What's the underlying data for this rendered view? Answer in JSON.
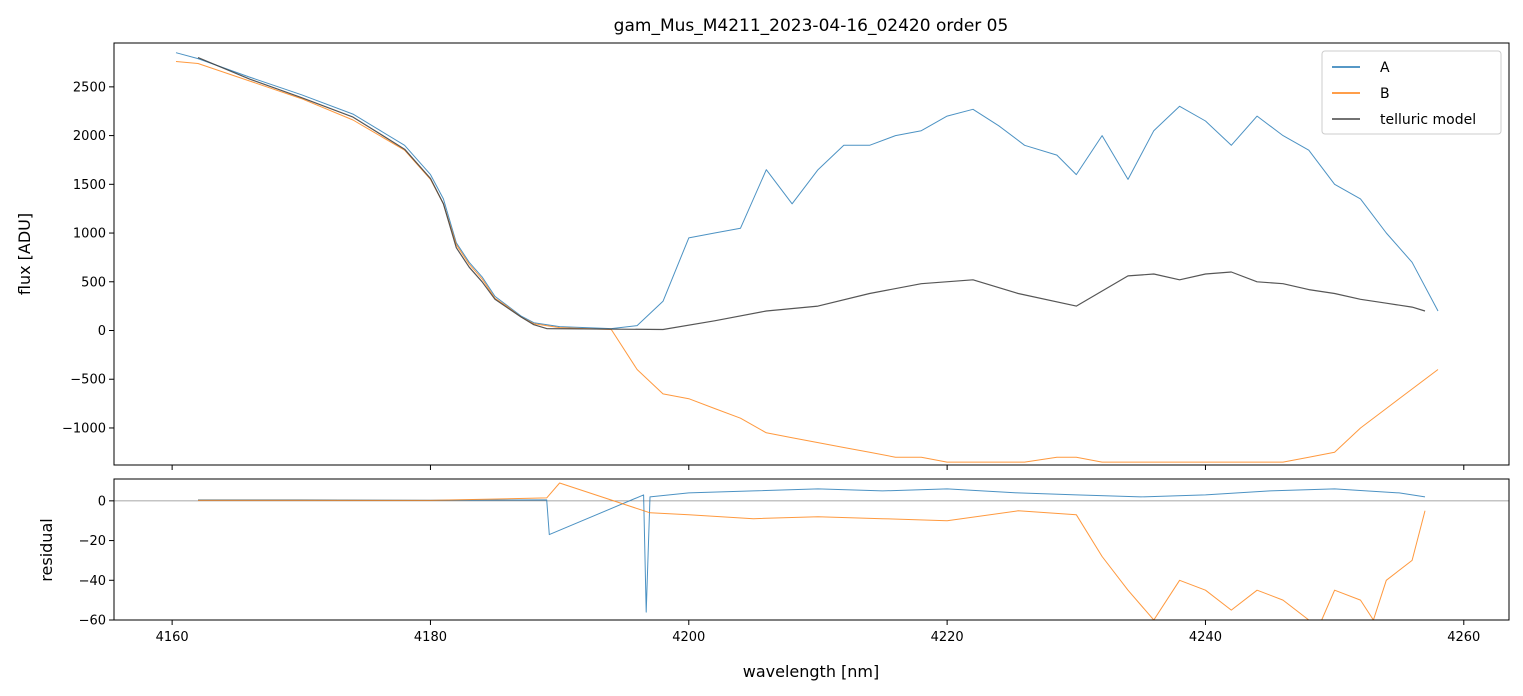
{
  "chart_data": [
    {
      "type": "line",
      "panel": "main",
      "title": "gam_Mus_M4211_2023-04-16_02420  order 05",
      "xlabel": "",
      "ylabel": "flux [ADU]",
      "xlim": [
        4155.5,
        4263.5
      ],
      "ylim": [
        -1380,
        2950
      ],
      "xticks": [
        4160,
        4180,
        4200,
        4220,
        4240,
        4260
      ],
      "xtick_labels_shown": false,
      "yticks": [
        -1000,
        -500,
        0,
        500,
        1000,
        1500,
        2000,
        2500
      ],
      "ytick_labels": [
        "−1000",
        "−500",
        "0",
        "500",
        "1000",
        "1500",
        "2000",
        "2500"
      ],
      "legend": {
        "position": "top-right",
        "entries": [
          "A",
          "B",
          "telluric model"
        ]
      },
      "series": [
        {
          "name": "A",
          "color": "#1f77b4",
          "x": [
            4160.3,
            4162,
            4166,
            4170,
            4174,
            4178,
            4180,
            4181,
            4182,
            4183,
            4184,
            4185,
            4186,
            4187,
            4188,
            4190,
            4192,
            4194,
            4196,
            4198,
            4200,
            4202,
            4204,
            4206,
            4208,
            4210,
            4212,
            4214,
            4216,
            4218,
            4220,
            4222,
            4224,
            4226,
            4228.5,
            4230,
            4232,
            4234,
            4236,
            4238,
            4240,
            4242,
            4244,
            4246,
            4248,
            4250,
            4252,
            4254,
            4256,
            4258
          ],
          "y": [
            2850,
            2790,
            2600,
            2420,
            2220,
            1900,
            1600,
            1350,
            900,
            700,
            550,
            350,
            250,
            150,
            80,
            40,
            30,
            20,
            50,
            300,
            950,
            1000,
            1050,
            1650,
            1300,
            1650,
            1900,
            1900,
            2000,
            2050,
            2200,
            2270,
            2100,
            1900,
            1800,
            1600,
            2000,
            1550,
            2050,
            2300,
            2150,
            1900,
            2200,
            2000,
            1850,
            1500,
            1350,
            1000,
            700,
            200
          ]
        },
        {
          "name": "B",
          "color": "#ff7f0e",
          "x": [
            4160.3,
            4162,
            4166,
            4170,
            4174,
            4178,
            4180,
            4181,
            4182,
            4183,
            4184,
            4185,
            4186,
            4187,
            4188,
            4190,
            4192,
            4194,
            4196,
            4198,
            4200,
            4202,
            4204,
            4206,
            4208,
            4210,
            4212,
            4214,
            4216,
            4218,
            4220,
            4222,
            4224,
            4226,
            4228.5,
            4230,
            4232,
            4234,
            4236,
            4238,
            4240,
            4242,
            4244,
            4246,
            4248,
            4250,
            4252,
            4254,
            4256,
            4258
          ],
          "y": [
            2760,
            2740,
            2560,
            2380,
            2160,
            1850,
            1550,
            1300,
            880,
            680,
            530,
            330,
            240,
            140,
            70,
            30,
            20,
            10,
            -400,
            -650,
            -700,
            -800,
            -900,
            -1050,
            -1100,
            -1150,
            -1200,
            -1250,
            -1300,
            -1300,
            -1350,
            -1350,
            -1350,
            -1350,
            -1300,
            -1300,
            -1350,
            -1350,
            -1350,
            -1350,
            -1350,
            -1350,
            -1350,
            -1350,
            -1300,
            -1250,
            -1000,
            -800,
            -600,
            -400
          ]
        },
        {
          "name": "telluric model",
          "color": "#444444",
          "x": [
            4162,
            4166,
            4170,
            4174,
            4178,
            4180,
            4181,
            4182,
            4183,
            4184,
            4185,
            4186,
            4187,
            4188,
            4189,
            4198,
            4202,
            4206,
            4210,
            4214,
            4218,
            4222,
            4225.5,
            4230,
            4234,
            4236,
            4238,
            4240,
            4242,
            4244,
            4246,
            4248,
            4250,
            4252,
            4254,
            4256,
            4257
          ],
          "y": [
            2800,
            2580,
            2390,
            2190,
            1860,
            1560,
            1300,
            850,
            650,
            500,
            320,
            230,
            140,
            60,
            20,
            10,
            100,
            200,
            250,
            380,
            480,
            520,
            380,
            250,
            560,
            580,
            520,
            580,
            600,
            500,
            480,
            420,
            380,
            320,
            280,
            240,
            200
          ]
        }
      ]
    },
    {
      "type": "line",
      "panel": "residual",
      "title": "",
      "xlabel": "wavelength [nm]",
      "ylabel": "residual",
      "xlim": [
        4155.5,
        4263.5
      ],
      "ylim": [
        -60,
        11
      ],
      "xticks": [
        4160,
        4180,
        4200,
        4220,
        4240,
        4260
      ],
      "xtick_labels": [
        "4160",
        "4180",
        "4200",
        "4220",
        "4240",
        "4260"
      ],
      "yticks": [
        -60,
        -40,
        -20,
        0
      ],
      "ytick_labels": [
        "−60",
        "−40",
        "−20",
        "0"
      ],
      "series": [
        {
          "name": "A",
          "color": "#1f77b4",
          "x": [
            4162,
            4170,
            4180,
            4189,
            4189.2,
            4196.5,
            4196.7,
            4197,
            4200,
            4205,
            4210,
            4215,
            4220,
            4225.5,
            4230,
            4235,
            4240,
            4245,
            4250,
            4255,
            4257
          ],
          "y": [
            0.5,
            0.5,
            0.3,
            0.5,
            -17,
            3,
            -56,
            2,
            4,
            5,
            6,
            5,
            6,
            4,
            3,
            2,
            3,
            5,
            6,
            4,
            2
          ]
        },
        {
          "name": "B",
          "color": "#ff7f0e",
          "x": [
            4162,
            4170,
            4180,
            4189,
            4190,
            4197,
            4200,
            4205,
            4210,
            4215,
            4220,
            4225.5,
            4230,
            4232,
            4234,
            4236,
            4238,
            4240,
            4242,
            4244,
            4246,
            4248,
            4249,
            4250,
            4252,
            4253,
            4254,
            4256,
            4257
          ],
          "y": [
            0.3,
            0.3,
            0.2,
            1.5,
            9,
            -6,
            -7,
            -9,
            -8,
            -9,
            -10,
            -5,
            -7,
            -28,
            -45,
            -60,
            -40,
            -45,
            -55,
            -45,
            -50,
            -60,
            -60,
            -45,
            -50,
            -60,
            -40,
            -30,
            -5
          ]
        }
      ]
    }
  ]
}
